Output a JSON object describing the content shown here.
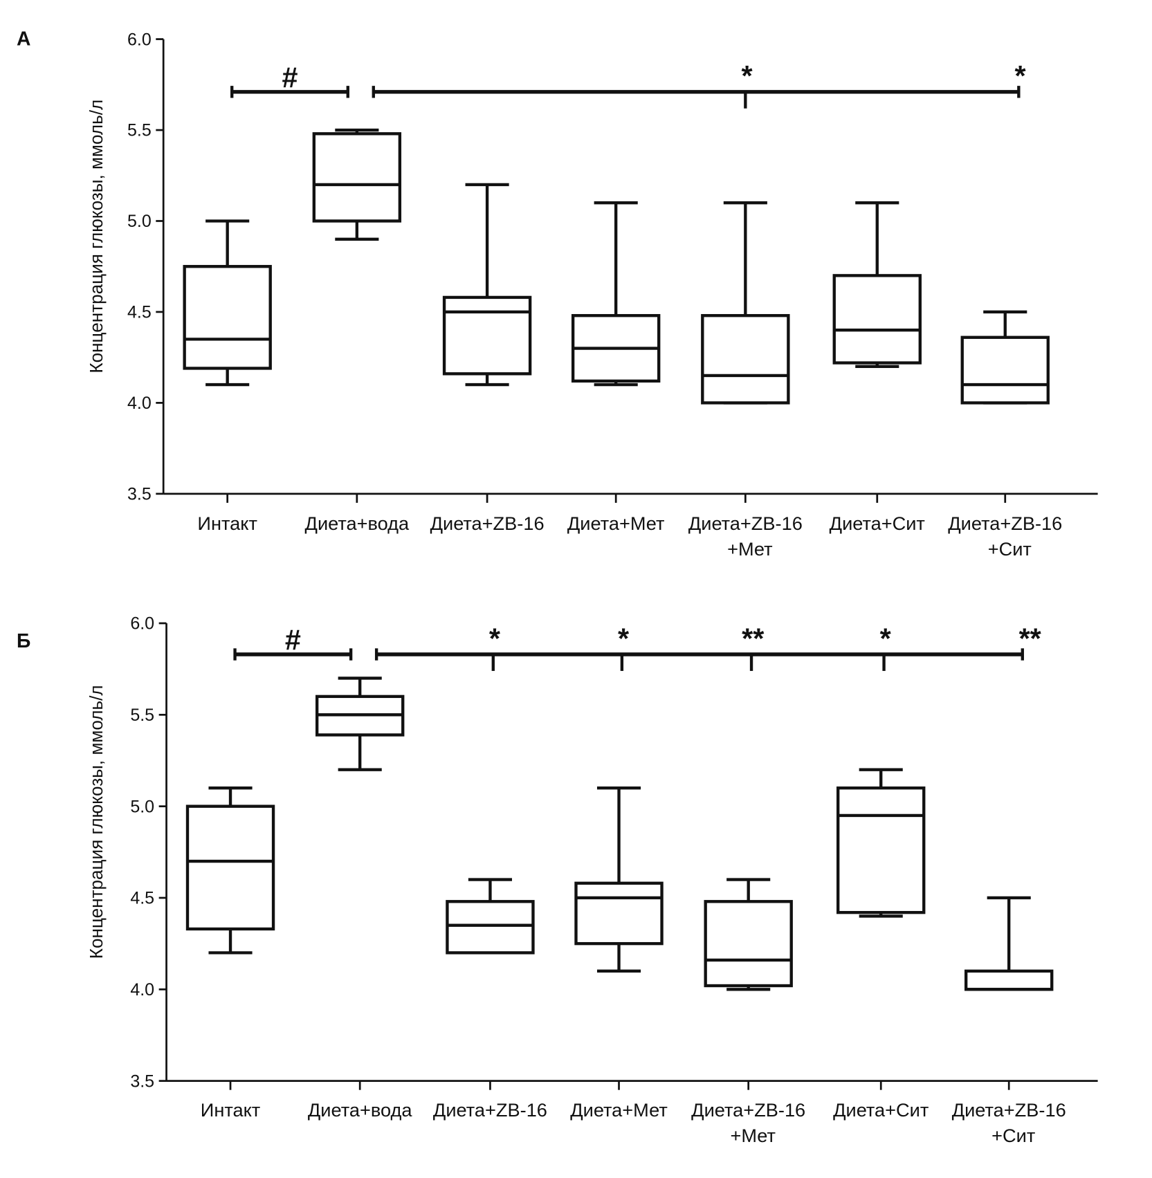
{
  "chart_data": [
    {
      "type": "box",
      "panel_label": "А",
      "ylabel": "Концентрация глюкозы, ммоль/л",
      "ylim": [
        3.5,
        6.0
      ],
      "yticks": [
        "3.5",
        "4.0",
        "4.5",
        "5.0",
        "5.5",
        "6.0"
      ],
      "categories": [
        [
          "Интакт"
        ],
        [
          "Диета+вода"
        ],
        [
          "Диета+ZB-16"
        ],
        [
          "Диета+Мет"
        ],
        [
          "Диета+ZB-16",
          "+Мет"
        ],
        [
          "Диета+Сит"
        ],
        [
          "Диета+ZB-16",
          "+Сит"
        ]
      ],
      "boxes": [
        {
          "min": 4.1,
          "q1": 4.19,
          "median": 4.35,
          "q3": 4.75,
          "max": 5.0
        },
        {
          "min": 4.9,
          "q1": 5.0,
          "median": 5.2,
          "q3": 5.48,
          "max": 5.5
        },
        {
          "min": 4.1,
          "q1": 4.16,
          "median": 4.5,
          "q3": 4.58,
          "max": 5.2
        },
        {
          "min": 4.1,
          "q1": 4.12,
          "median": 4.3,
          "q3": 4.48,
          "max": 5.1
        },
        {
          "min": 4.0,
          "q1": 4.0,
          "median": 4.15,
          "q3": 4.48,
          "max": 5.1
        },
        {
          "min": 4.2,
          "q1": 4.22,
          "median": 4.4,
          "q3": 4.7,
          "max": 5.1
        },
        {
          "min": 4.0,
          "q1": 4.0,
          "median": 4.1,
          "q3": 4.36,
          "max": 4.5
        }
      ],
      "significance": {
        "bracket_level": 5.71,
        "hash_label": "#",
        "marks": [
          {
            "category_index": 4,
            "label": "*"
          },
          {
            "category_index": 6,
            "label": "*"
          }
        ]
      }
    },
    {
      "type": "box",
      "panel_label": "Б",
      "ylabel": "Концентрация глюкозы, ммоль/л",
      "ylim": [
        3.5,
        6.0
      ],
      "yticks": [
        "3.5",
        "4.0",
        "4.5",
        "5.0",
        "5.5",
        "6.0"
      ],
      "categories": [
        [
          "Интакт"
        ],
        [
          "Диета+вода"
        ],
        [
          "Диета+ZB-16"
        ],
        [
          "Диета+Мет"
        ],
        [
          "Диета+ZB-16",
          "+Мет"
        ],
        [
          "Диета+Сит"
        ],
        [
          "Диета+ZB-16",
          "+Сит"
        ]
      ],
      "boxes": [
        {
          "min": 4.2,
          "q1": 4.33,
          "median": 4.7,
          "q3": 5.0,
          "max": 5.1
        },
        {
          "min": 5.2,
          "q1": 5.39,
          "median": 5.5,
          "q3": 5.6,
          "max": 5.7
        },
        {
          "min": 4.2,
          "q1": 4.2,
          "median": 4.35,
          "q3": 4.48,
          "max": 4.6
        },
        {
          "min": 4.1,
          "q1": 4.25,
          "median": 4.5,
          "q3": 4.58,
          "max": 5.1
        },
        {
          "min": 4.0,
          "q1": 4.02,
          "median": 4.16,
          "q3": 4.48,
          "max": 4.6
        },
        {
          "min": 4.4,
          "q1": 4.42,
          "median": 4.95,
          "q3": 5.1,
          "max": 5.2
        },
        {
          "min": 4.0,
          "q1": 4.0,
          "median": 4.0,
          "q3": 4.1,
          "max": 4.5
        }
      ],
      "significance": {
        "bracket_level": 5.83,
        "hash_label": "#",
        "marks": [
          {
            "category_index": 2,
            "label": "*"
          },
          {
            "category_index": 3,
            "label": "*"
          },
          {
            "category_index": 4,
            "label": "**"
          },
          {
            "category_index": 5,
            "label": "*"
          },
          {
            "category_index": 6,
            "label": "**"
          }
        ]
      }
    }
  ]
}
